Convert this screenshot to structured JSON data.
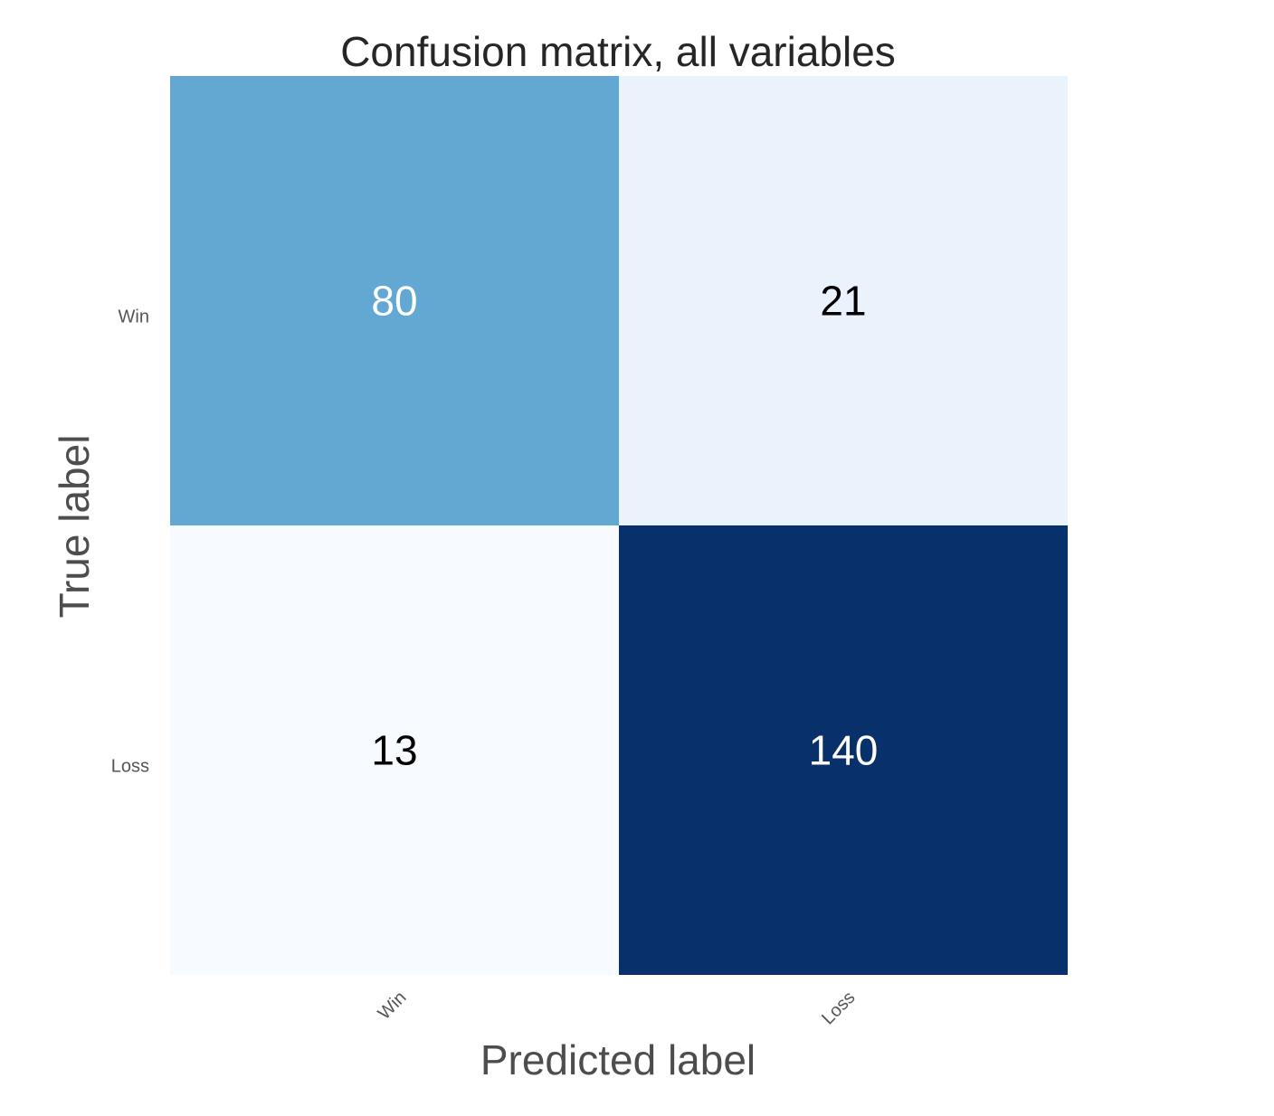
{
  "chart_data": {
    "type": "heatmap",
    "title": "Confusion matrix, all variables",
    "xlabel": "Predicted label",
    "ylabel": "True label",
    "x_categories": [
      "Win",
      "Loss"
    ],
    "y_categories": [
      "Win",
      "Loss"
    ],
    "values": [
      [
        80,
        21
      ],
      [
        13,
        140
      ]
    ],
    "colormap": "Blues",
    "colors": {
      "light": "#f7fbff",
      "mid": "#c6dbef",
      "mid2": "#6baed6",
      "dark": "#08306b"
    },
    "grid": false,
    "colorbar": false
  }
}
